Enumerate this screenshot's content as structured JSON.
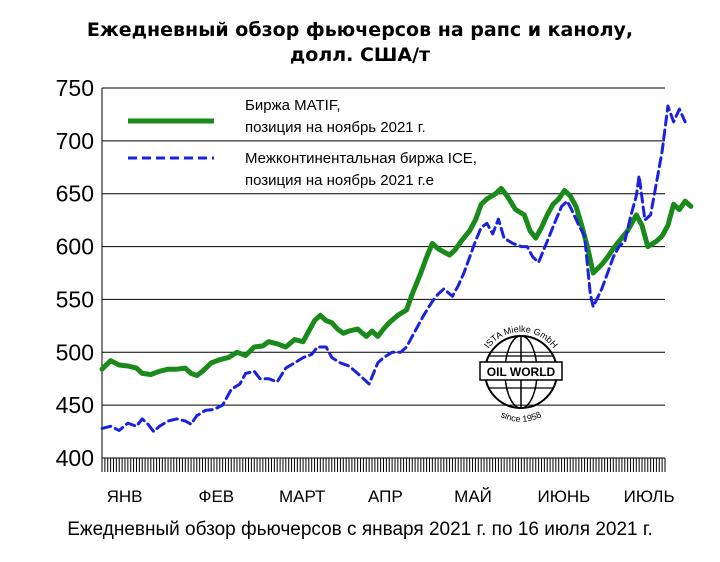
{
  "title_line1": "Ежедневный обзор фьючерсов на рапс и канолу,",
  "title_line2": "долл. США/т",
  "caption": "Ежедневный обзор фьючерсов с января 2021 г. по 16 июля 2021 г.",
  "logo": {
    "top": "ISTA Mielke GmbH",
    "center": "OIL WORLD",
    "bottom": "since 1958"
  },
  "colors": {
    "matif": "#1a8a1a",
    "ice": "#1a22e0",
    "grid": "#000000"
  },
  "chart_data": {
    "type": "line",
    "title": "Ежедневный обзор фьючерсов на рапс и канолу, долл. США/т",
    "ylim": [
      400,
      750
    ],
    "yticks": [
      400,
      450,
      500,
      550,
      600,
      650,
      700,
      750
    ],
    "xlim": [
      0,
      196
    ],
    "month_labels": [
      "ЯНВ",
      "ФЕВ",
      "МАРТ",
      "АПР",
      "МАЙ",
      "ИЮНЬ",
      "ИЮЛЬ"
    ],
    "month_label_x": [
      3,
      35,
      63,
      94,
      124,
      153,
      183
    ],
    "grid": "horizontal",
    "legend_placement": "top-left",
    "series": [
      {
        "name": "Биржа MATIF, позиция на ноябрь 2021 г.",
        "legend_line1": "Биржа MATIF,",
        "legend_line2": "позиция на ноябрь 2021 г.",
        "style": "solid",
        "points": [
          [
            0,
            484
          ],
          [
            3,
            492
          ],
          [
            6,
            488
          ],
          [
            9,
            487
          ],
          [
            12,
            485
          ],
          [
            14,
            480
          ],
          [
            17,
            479
          ],
          [
            20,
            482
          ],
          [
            23,
            484
          ],
          [
            26,
            484
          ],
          [
            29,
            485
          ],
          [
            31,
            480
          ],
          [
            33,
            478
          ],
          [
            35,
            482
          ],
          [
            38,
            490
          ],
          [
            41,
            493
          ],
          [
            44,
            495
          ],
          [
            47,
            500
          ],
          [
            50,
            497
          ],
          [
            53,
            505
          ],
          [
            56,
            506
          ],
          [
            58,
            510
          ],
          [
            61,
            508
          ],
          [
            64,
            505
          ],
          [
            67,
            512
          ],
          [
            70,
            510
          ],
          [
            72,
            520
          ],
          [
            74,
            530
          ],
          [
            76,
            535
          ],
          [
            78,
            530
          ],
          [
            80,
            528
          ],
          [
            82,
            522
          ],
          [
            84,
            518
          ],
          [
            86,
            520
          ],
          [
            89,
            522
          ],
          [
            92,
            515
          ],
          [
            94,
            520
          ],
          [
            96,
            515
          ],
          [
            98,
            522
          ],
          [
            100,
            528
          ],
          [
            103,
            535
          ],
          [
            106,
            540
          ],
          [
            108,
            555
          ],
          [
            111,
            575
          ],
          [
            113,
            590
          ],
          [
            115,
            603
          ],
          [
            117,
            598
          ],
          [
            119,
            595
          ],
          [
            121,
            592
          ],
          [
            123,
            597
          ],
          [
            125,
            605
          ],
          [
            128,
            615
          ],
          [
            130,
            625
          ],
          [
            132,
            640
          ],
          [
            134,
            645
          ],
          [
            137,
            650
          ],
          [
            139,
            655
          ],
          [
            141,
            648
          ],
          [
            144,
            635
          ],
          [
            147,
            630
          ],
          [
            149,
            615
          ],
          [
            151,
            608
          ],
          [
            153,
            618
          ],
          [
            155,
            630
          ],
          [
            157,
            640
          ],
          [
            159,
            645
          ],
          [
            161,
            653
          ],
          [
            163,
            648
          ],
          [
            165,
            638
          ],
          [
            167,
            620
          ],
          [
            169,
            600
          ],
          [
            171,
            575
          ],
          [
            174,
            583
          ],
          [
            176,
            590
          ],
          [
            178,
            598
          ],
          [
            180,
            605
          ],
          [
            183,
            615
          ],
          [
            186,
            630
          ],
          [
            188,
            620
          ],
          [
            190,
            600
          ],
          [
            193,
            605
          ],
          [
            195,
            610
          ],
          [
            197,
            620
          ],
          [
            199,
            640
          ],
          [
            201,
            635
          ],
          [
            203,
            643
          ],
          [
            205,
            638
          ]
        ]
      },
      {
        "name": "Межконтинентальная биржа ICE, позиция на ноябрь 2021 г.е",
        "legend_line1": "Межконтинентальная биржа ICE,",
        "legend_line2": "позиция на ноябрь 2021 г.е",
        "style": "dashed",
        "points": [
          [
            0,
            428
          ],
          [
            3,
            430
          ],
          [
            6,
            426
          ],
          [
            9,
            433
          ],
          [
            12,
            430
          ],
          [
            14,
            437
          ],
          [
            16,
            432
          ],
          [
            18,
            425
          ],
          [
            20,
            430
          ],
          [
            23,
            435
          ],
          [
            26,
            437
          ],
          [
            29,
            435
          ],
          [
            31,
            432
          ],
          [
            33,
            440
          ],
          [
            36,
            445
          ],
          [
            39,
            446
          ],
          [
            42,
            450
          ],
          [
            45,
            465
          ],
          [
            48,
            470
          ],
          [
            50,
            480
          ],
          [
            53,
            482
          ],
          [
            55,
            475
          ],
          [
            58,
            475
          ],
          [
            61,
            472
          ],
          [
            64,
            485
          ],
          [
            67,
            490
          ],
          [
            70,
            495
          ],
          [
            73,
            498
          ],
          [
            75,
            505
          ],
          [
            78,
            505
          ],
          [
            80,
            495
          ],
          [
            83,
            490
          ],
          [
            86,
            487
          ],
          [
            89,
            480
          ],
          [
            91,
            475
          ],
          [
            93,
            470
          ],
          [
            96,
            490
          ],
          [
            98,
            495
          ],
          [
            101,
            500
          ],
          [
            104,
            500
          ],
          [
            106,
            505
          ],
          [
            109,
            520
          ],
          [
            112,
            535
          ],
          [
            115,
            548
          ],
          [
            117,
            555
          ],
          [
            119,
            560
          ],
          [
            122,
            553
          ],
          [
            124,
            563
          ],
          [
            126,
            575
          ],
          [
            128,
            590
          ],
          [
            130,
            605
          ],
          [
            132,
            618
          ],
          [
            134,
            622
          ],
          [
            136,
            612
          ],
          [
            138,
            626
          ],
          [
            140,
            608
          ],
          [
            143,
            603
          ],
          [
            146,
            600
          ],
          [
            148,
            600
          ],
          [
            150,
            590
          ],
          [
            152,
            585
          ],
          [
            155,
            605
          ],
          [
            158,
            625
          ],
          [
            160,
            638
          ],
          [
            162,
            643
          ],
          [
            164,
            632
          ],
          [
            166,
            620
          ],
          [
            168,
            610
          ],
          [
            170,
            555
          ],
          [
            171,
            543
          ],
          [
            174,
            560
          ],
          [
            176,
            575
          ],
          [
            178,
            590
          ],
          [
            180,
            600
          ],
          [
            182,
            605
          ],
          [
            184,
            628
          ],
          [
            186,
            648
          ],
          [
            187,
            667
          ],
          [
            189,
            625
          ],
          [
            191,
            630
          ],
          [
            193,
            660
          ],
          [
            195,
            690
          ],
          [
            197,
            733
          ],
          [
            199,
            718
          ],
          [
            201,
            730
          ],
          [
            203,
            718
          ]
        ]
      }
    ]
  }
}
